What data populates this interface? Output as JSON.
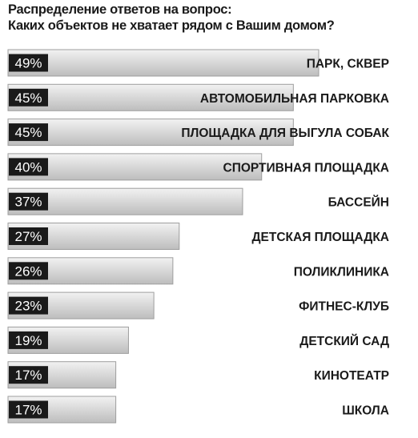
{
  "header": {
    "title_line1": "Распределение ответов на вопрос:",
    "title_line2": "Каких объектов не хватает рядом с Вашим домом?"
  },
  "colors": {
    "bar_fill_light": "#f2f2f2",
    "bar_fill_dark": "#bdbdbd",
    "bar_border": "#9e9e9e",
    "label_box": "#1a1a1a",
    "label_text": "#ffffff",
    "category_text": "#1a1a1a"
  },
  "chart_data": {
    "type": "bar",
    "orientation": "horizontal",
    "title": "Распределение ответов на вопрос: Каких объектов не хватает рядом с Вашим домом?",
    "categories": [
      "ПАРК, СКВЕР",
      "АВТОМОБИЛЬНАЯ ПАРКОВКА",
      "ПЛОЩАДКА ДЛЯ ВЫГУЛА СОБАК",
      "СПОРТИВНАЯ ПЛОЩАДКА",
      "БАССЕЙН",
      "ДЕТСКАЯ ПЛОЩАДКА",
      "ПОЛИКЛИНИКА",
      "ФИТНЕС-КЛУБ",
      "ДЕТСКИЙ САД",
      "КИНОТЕАТР",
      "ШКОЛА"
    ],
    "values": [
      49,
      45,
      45,
      40,
      37,
      27,
      26,
      23,
      19,
      17,
      17
    ],
    "value_labels": [
      "49%",
      "45%",
      "45%",
      "40%",
      "37%",
      "27%",
      "26%",
      "23%",
      "19%",
      "17%",
      "17%"
    ],
    "unit": "%",
    "xlim": [
      0,
      49
    ]
  }
}
